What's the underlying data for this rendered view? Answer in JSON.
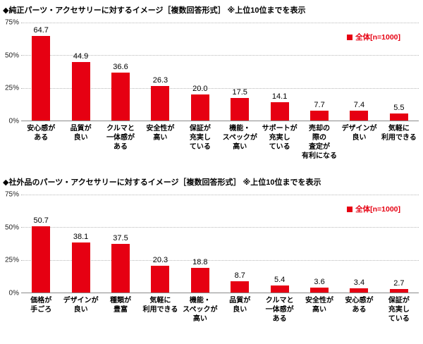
{
  "page": {
    "background": "#ffffff"
  },
  "accent_color": "#e60012",
  "chart_data": [
    {
      "type": "bar",
      "title": "◆純正パーツ・アクセサリーに対するイメージ［複数回答形式］ ※上位10位までを表示",
      "legend": "全体[n=1000]",
      "legend_position": "top-right",
      "bar_color": "#e60012",
      "ylim": [
        0,
        75
      ],
      "yticks": [
        "0%",
        "25%",
        "50%",
        "75%"
      ],
      "grid": "horizontal-dotted",
      "categories": [
        "安心感が\nある",
        "品質が\n良い",
        "クルマと\n一体感が\nある",
        "安全性が\n高い",
        "保証が\n充実し\nている",
        "機能・\nスペックが\n高い",
        "サポートが\n充実し\nている",
        "売却の\n際の\n査定が\n有利になる",
        "デザインが\n良い",
        "気軽に\n利用できる"
      ],
      "values": [
        64.7,
        44.9,
        36.6,
        26.3,
        20.0,
        17.5,
        14.1,
        7.7,
        7.4,
        5.5
      ]
    },
    {
      "type": "bar",
      "title": "◆社外品のパーツ・アクセサリーに対するイメージ［複数回答形式］ ※上位10位までを表示",
      "legend": "全体[n=1000]",
      "legend_position": "top-right",
      "bar_color": "#e60012",
      "ylim": [
        0,
        75
      ],
      "yticks": [
        "0%",
        "25%",
        "50%",
        "75%"
      ],
      "grid": "horizontal-dotted",
      "categories": [
        "価格が\n手ごろ",
        "デザインが\n良い",
        "種類が\n豊富",
        "気軽に\n利用できる",
        "機能・\nスペックが\n高い",
        "品質が\n良い",
        "クルマと\n一体感が\nある",
        "安全性が\n高い",
        "安心感が\nある",
        "保証が\n充実し\nている"
      ],
      "values": [
        50.7,
        38.1,
        37.5,
        20.3,
        18.8,
        8.7,
        5.4,
        3.6,
        3.4,
        2.7
      ]
    }
  ]
}
